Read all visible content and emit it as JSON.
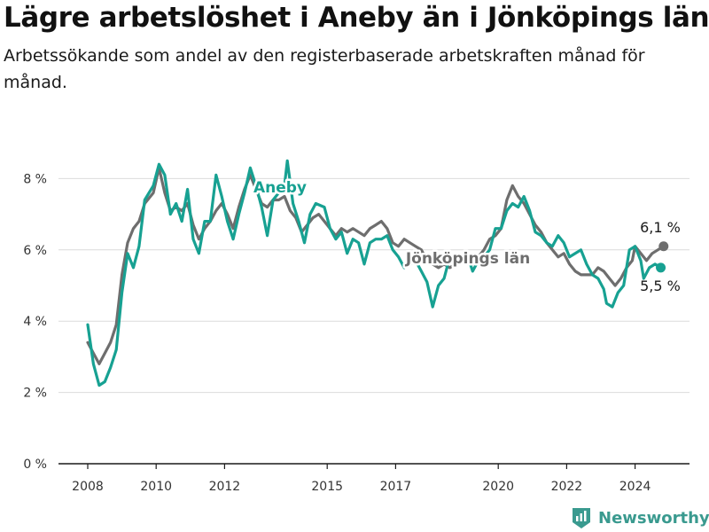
{
  "title": "Lägre arbetslöshet i Aneby än i Jönköpings län",
  "subtitle": "Arbetssökande som andel av den registerbaserade arbetskraften månad för månad.",
  "brand": "Newsworthy",
  "chart_data": {
    "type": "line",
    "title": "Lägre arbetslöshet i Aneby än i Jönköpings län",
    "subtitle": "Arbetssökande som andel av den registerbaserade arbetskraften månad för månad.",
    "xlabel": "",
    "ylabel": "",
    "x_ticks": [
      "2008",
      "2010",
      "2012",
      "2015",
      "2017",
      "2020",
      "2022",
      "2024"
    ],
    "y_ticks": [
      "0 %",
      "2 %",
      "4 %",
      "6 %",
      "8 %"
    ],
    "ylim": [
      0,
      8.8
    ],
    "grid": "horizontal",
    "series": [
      {
        "name": "Aneby",
        "color": "#17a192",
        "end_label": "5,5 %",
        "points": [
          [
            "2008-01",
            3.9
          ],
          [
            "2008-03",
            2.8
          ],
          [
            "2008-05",
            2.2
          ],
          [
            "2008-07",
            2.3
          ],
          [
            "2008-09",
            2.7
          ],
          [
            "2008-11",
            3.2
          ],
          [
            "2009-01",
            4.8
          ],
          [
            "2009-03",
            5.9
          ],
          [
            "2009-05",
            5.5
          ],
          [
            "2009-07",
            6.1
          ],
          [
            "2009-09",
            7.4
          ],
          [
            "2009-12",
            7.8
          ],
          [
            "2010-02",
            8.4
          ],
          [
            "2010-04",
            8.1
          ],
          [
            "2010-06",
            7.0
          ],
          [
            "2010-08",
            7.3
          ],
          [
            "2010-10",
            6.8
          ],
          [
            "2010-12",
            7.7
          ],
          [
            "2011-02",
            6.3
          ],
          [
            "2011-04",
            5.9
          ],
          [
            "2011-06",
            6.8
          ],
          [
            "2011-08",
            6.8
          ],
          [
            "2011-10",
            8.1
          ],
          [
            "2011-12",
            7.5
          ],
          [
            "2012-02",
            6.8
          ],
          [
            "2012-04",
            6.3
          ],
          [
            "2012-06",
            7.0
          ],
          [
            "2012-08",
            7.6
          ],
          [
            "2012-10",
            8.3
          ],
          [
            "2012-12",
            7.8
          ],
          [
            "2013-02",
            7.2
          ],
          [
            "2013-04",
            6.4
          ],
          [
            "2013-06",
            7.4
          ],
          [
            "2013-08",
            7.6
          ],
          [
            "2013-10",
            7.8
          ],
          [
            "2013-11",
            8.5
          ],
          [
            "2014-01",
            7.3
          ],
          [
            "2014-03",
            6.8
          ],
          [
            "2014-05",
            6.2
          ],
          [
            "2014-07",
            7.0
          ],
          [
            "2014-09",
            7.3
          ],
          [
            "2014-12",
            7.2
          ],
          [
            "2015-02",
            6.6
          ],
          [
            "2015-04",
            6.3
          ],
          [
            "2015-06",
            6.5
          ],
          [
            "2015-08",
            5.9
          ],
          [
            "2015-10",
            6.3
          ],
          [
            "2015-12",
            6.2
          ],
          [
            "2016-02",
            5.6
          ],
          [
            "2016-04",
            6.2
          ],
          [
            "2016-06",
            6.3
          ],
          [
            "2016-08",
            6.3
          ],
          [
            "2016-10",
            6.4
          ],
          [
            "2016-12",
            6.0
          ],
          [
            "2017-02",
            5.8
          ],
          [
            "2017-04",
            5.5
          ],
          [
            "2017-06",
            5.6
          ],
          [
            "2017-08",
            5.7
          ],
          [
            "2017-10",
            5.4
          ],
          [
            "2017-12",
            5.1
          ],
          [
            "2018-02",
            4.4
          ],
          [
            "2018-04",
            5.0
          ],
          [
            "2018-06",
            5.2
          ],
          [
            "2018-08",
            5.8
          ],
          [
            "2018-10",
            5.6
          ],
          [
            "2018-12",
            5.7
          ],
          [
            "2019-02",
            5.9
          ],
          [
            "2019-04",
            5.4
          ],
          [
            "2019-06",
            5.7
          ],
          [
            "2019-08",
            5.8
          ],
          [
            "2019-10",
            6.0
          ],
          [
            "2019-12",
            6.6
          ],
          [
            "2020-02",
            6.6
          ],
          [
            "2020-04",
            7.1
          ],
          [
            "2020-06",
            7.3
          ],
          [
            "2020-08",
            7.2
          ],
          [
            "2020-10",
            7.5
          ],
          [
            "2020-12",
            7.1
          ],
          [
            "2021-02",
            6.5
          ],
          [
            "2021-04",
            6.4
          ],
          [
            "2021-06",
            6.2
          ],
          [
            "2021-08",
            6.1
          ],
          [
            "2021-10",
            6.4
          ],
          [
            "2021-12",
            6.2
          ],
          [
            "2022-02",
            5.8
          ],
          [
            "2022-04",
            5.9
          ],
          [
            "2022-06",
            6.0
          ],
          [
            "2022-08",
            5.6
          ],
          [
            "2022-10",
            5.3
          ],
          [
            "2022-12",
            5.2
          ],
          [
            "2023-02",
            4.9
          ],
          [
            "2023-03",
            4.5
          ],
          [
            "2023-05",
            4.4
          ],
          [
            "2023-07",
            4.8
          ],
          [
            "2023-09",
            5.0
          ],
          [
            "2023-11",
            6.0
          ],
          [
            "2024-01",
            6.1
          ],
          [
            "2024-03",
            5.7
          ],
          [
            "2024-04",
            5.2
          ],
          [
            "2024-06",
            5.5
          ],
          [
            "2024-08",
            5.6
          ],
          [
            "2024-10",
            5.5
          ]
        ]
      },
      {
        "name": "Jönköpings län",
        "color": "#6e6e6e",
        "end_label": "6,1 %",
        "points": [
          [
            "2008-01",
            3.4
          ],
          [
            "2008-03",
            3.1
          ],
          [
            "2008-05",
            2.8
          ],
          [
            "2008-07",
            3.1
          ],
          [
            "2008-09",
            3.4
          ],
          [
            "2008-11",
            3.9
          ],
          [
            "2009-01",
            5.3
          ],
          [
            "2009-03",
            6.2
          ],
          [
            "2009-05",
            6.6
          ],
          [
            "2009-07",
            6.8
          ],
          [
            "2009-09",
            7.3
          ],
          [
            "2009-12",
            7.6
          ],
          [
            "2010-02",
            8.3
          ],
          [
            "2010-04",
            7.6
          ],
          [
            "2010-06",
            7.1
          ],
          [
            "2010-08",
            7.2
          ],
          [
            "2010-10",
            7.1
          ],
          [
            "2010-12",
            7.3
          ],
          [
            "2011-02",
            6.7
          ],
          [
            "2011-04",
            6.3
          ],
          [
            "2011-06",
            6.6
          ],
          [
            "2011-08",
            6.8
          ],
          [
            "2011-10",
            7.1
          ],
          [
            "2011-12",
            7.3
          ],
          [
            "2012-02",
            7.0
          ],
          [
            "2012-04",
            6.6
          ],
          [
            "2012-06",
            7.2
          ],
          [
            "2012-08",
            7.7
          ],
          [
            "2012-10",
            8.1
          ],
          [
            "2012-12",
            7.7
          ],
          [
            "2013-02",
            7.3
          ],
          [
            "2013-04",
            7.2
          ],
          [
            "2013-06",
            7.4
          ],
          [
            "2013-08",
            7.4
          ],
          [
            "2013-10",
            7.5
          ],
          [
            "2013-12",
            7.1
          ],
          [
            "2014-02",
            6.9
          ],
          [
            "2014-04",
            6.5
          ],
          [
            "2014-06",
            6.7
          ],
          [
            "2014-08",
            6.9
          ],
          [
            "2014-10",
            7.0
          ],
          [
            "2014-12",
            6.8
          ],
          [
            "2015-02",
            6.6
          ],
          [
            "2015-04",
            6.4
          ],
          [
            "2015-06",
            6.6
          ],
          [
            "2015-08",
            6.5
          ],
          [
            "2015-10",
            6.6
          ],
          [
            "2015-12",
            6.5
          ],
          [
            "2016-02",
            6.4
          ],
          [
            "2016-04",
            6.6
          ],
          [
            "2016-06",
            6.7
          ],
          [
            "2016-08",
            6.8
          ],
          [
            "2016-10",
            6.6
          ],
          [
            "2016-12",
            6.2
          ],
          [
            "2017-02",
            6.1
          ],
          [
            "2017-04",
            6.3
          ],
          [
            "2017-06",
            6.2
          ],
          [
            "2017-08",
            6.1
          ],
          [
            "2017-10",
            6.0
          ],
          [
            "2017-12",
            5.7
          ],
          [
            "2018-02",
            5.6
          ],
          [
            "2018-04",
            5.5
          ],
          [
            "2018-06",
            5.6
          ],
          [
            "2018-08",
            5.5
          ],
          [
            "2018-10",
            5.6
          ],
          [
            "2018-12",
            5.8
          ],
          [
            "2019-02",
            5.7
          ],
          [
            "2019-04",
            5.6
          ],
          [
            "2019-06",
            5.8
          ],
          [
            "2019-08",
            6.0
          ],
          [
            "2019-10",
            6.3
          ],
          [
            "2019-12",
            6.4
          ],
          [
            "2020-02",
            6.6
          ],
          [
            "2020-04",
            7.4
          ],
          [
            "2020-06",
            7.8
          ],
          [
            "2020-08",
            7.5
          ],
          [
            "2020-10",
            7.3
          ],
          [
            "2020-12",
            7.0
          ],
          [
            "2021-02",
            6.7
          ],
          [
            "2021-04",
            6.5
          ],
          [
            "2021-06",
            6.2
          ],
          [
            "2021-08",
            6.0
          ],
          [
            "2021-10",
            5.8
          ],
          [
            "2021-12",
            5.9
          ],
          [
            "2022-02",
            5.6
          ],
          [
            "2022-04",
            5.4
          ],
          [
            "2022-06",
            5.3
          ],
          [
            "2022-08",
            5.3
          ],
          [
            "2022-10",
            5.3
          ],
          [
            "2022-12",
            5.5
          ],
          [
            "2023-02",
            5.4
          ],
          [
            "2023-04",
            5.2
          ],
          [
            "2023-06",
            5.0
          ],
          [
            "2023-08",
            5.2
          ],
          [
            "2023-10",
            5.5
          ],
          [
            "2023-12",
            5.7
          ],
          [
            "2024-01",
            6.1
          ],
          [
            "2024-03",
            5.9
          ],
          [
            "2024-05",
            5.7
          ],
          [
            "2024-07",
            5.9
          ],
          [
            "2024-09",
            6.0
          ],
          [
            "2024-11",
            6.1
          ]
        ]
      }
    ]
  }
}
